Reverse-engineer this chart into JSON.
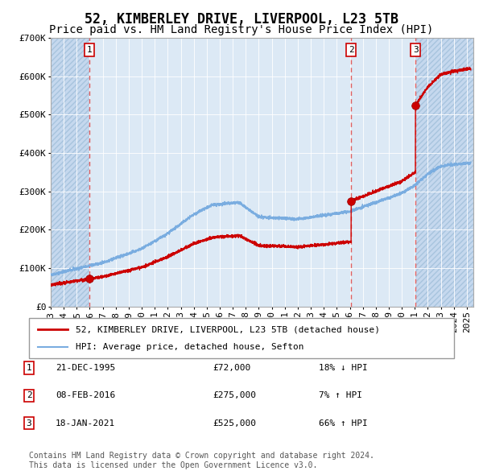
{
  "title": "52, KIMBERLEY DRIVE, LIVERPOOL, L23 5TB",
  "subtitle": "Price paid vs. HM Land Registry's House Price Index (HPI)",
  "ylim": [
    0,
    700000
  ],
  "yticks": [
    0,
    100000,
    200000,
    300000,
    400000,
    500000,
    600000,
    700000
  ],
  "ytick_labels": [
    "£0",
    "£100K",
    "£200K",
    "£300K",
    "£400K",
    "£500K",
    "£600K",
    "£700K"
  ],
  "xlim_start": 1993.0,
  "xlim_end": 2025.5,
  "background_color": "#ffffff",
  "plot_bg_color": "#dce9f5",
  "grid_color": "#ffffff",
  "red_line_color": "#cc0000",
  "blue_line_color": "#7aade0",
  "sale_marker_color": "#cc0000",
  "dashed_line_color": "#e06060",
  "title_fontsize": 12,
  "subtitle_fontsize": 10,
  "tick_fontsize": 8,
  "sales": [
    {
      "num": 1,
      "date_str": "21-DEC-1995",
      "price": 72000,
      "year": 1995.97,
      "hpi_rel": "18% ↓ HPI"
    },
    {
      "num": 2,
      "date_str": "08-FEB-2016",
      "price": 275000,
      "year": 2016.1,
      "hpi_rel": "7% ↑ HPI"
    },
    {
      "num": 3,
      "date_str": "18-JAN-2021",
      "price": 525000,
      "year": 2021.05,
      "hpi_rel": "66% ↑ HPI"
    }
  ],
  "legend_entries": [
    {
      "label": "52, KIMBERLEY DRIVE, LIVERPOOL, L23 5TB (detached house)",
      "color": "#cc0000",
      "lw": 2
    },
    {
      "label": "HPI: Average price, detached house, Sefton",
      "color": "#7aade0",
      "lw": 1.5
    }
  ],
  "footer": "Contains HM Land Registry data © Crown copyright and database right 2024.\nThis data is licensed under the Open Government Licence v3.0.",
  "hatch_start_year": 1993.0,
  "hatch_end_year": 1995.97,
  "hatch2_start_year": 2021.05,
  "hatch2_end_year": 2025.5
}
